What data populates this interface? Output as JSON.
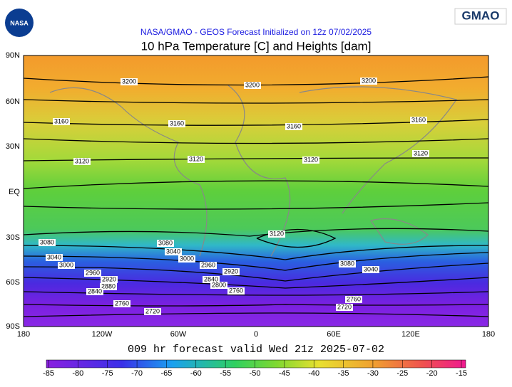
{
  "header": {
    "logo_left": "NASA",
    "logo_right": "GMAO",
    "subtitle": "NASA/GMAO - GEOS Forecast Initialized on 12z 07/02/2025",
    "title": "10 hPa Temperature [C] and Heights [dam]"
  },
  "map": {
    "lat_labels": [
      "90N",
      "60N",
      "30N",
      "EQ",
      "30S",
      "60S",
      "90S"
    ],
    "lon_labels": [
      "180",
      "120W",
      "60W",
      "0",
      "60E",
      "120E",
      "180"
    ],
    "contour_labels": [
      "3200",
      "3200",
      "3200",
      "3160",
      "3160",
      "3160",
      "3160",
      "3120",
      "3120",
      "3120",
      "3120",
      "3120",
      "3080",
      "3080",
      "3040",
      "3040",
      "3000",
      "3000",
      "2960",
      "2960",
      "2920",
      "2920",
      "2880",
      "2840",
      "2840",
      "2800",
      "2760",
      "2760",
      "2720",
      "3080",
      "3040",
      "2760",
      "2720"
    ]
  },
  "footer": "009 hr forecast valid Wed 21z 2025-07-02",
  "colorbar": {
    "ticks": [
      -85,
      -80,
      -75,
      -70,
      -65,
      -60,
      -55,
      -50,
      -45,
      -40,
      -35,
      -30,
      -25,
      -20,
      -15
    ]
  }
}
